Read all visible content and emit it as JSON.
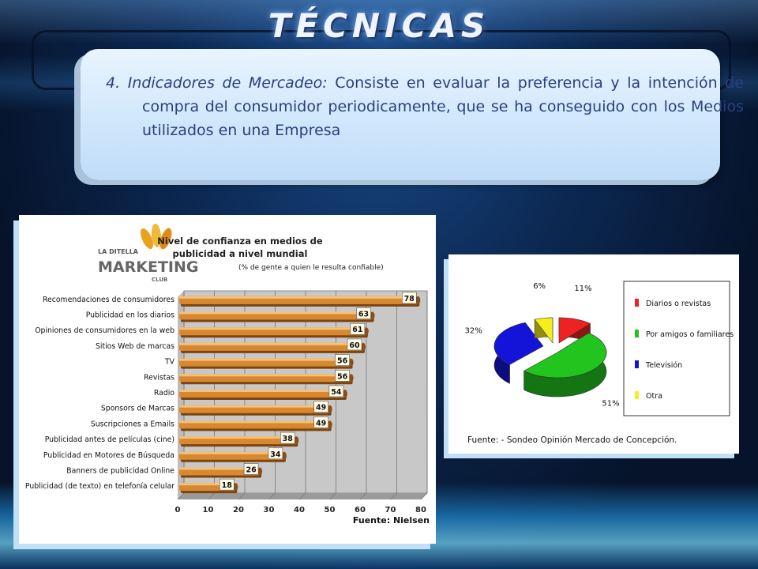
{
  "slide": {
    "title": "TÉCNICAS",
    "lead": "4. Indicadores de Mercadeo:",
    "body": " Consiste en evaluar la preferencia  y la intención de compra del consumidor periodicamente, que se ha conseguido con los Medios utilizados en una Empresa"
  },
  "logo": {
    "top": "LA DITELLA",
    "main": "MARKETING",
    "sub": "CLUB"
  },
  "chart_data": [
    {
      "type": "bar",
      "orientation": "horizontal",
      "title": "Nivel de confianza en medios de publicidad a nivel mundial",
      "subtitle": "(% de gente a quien le resulta confiable)",
      "categories": [
        "Recomendaciones de consumidores",
        "Publicidad en los diarios",
        "Opiniones de consumidores en la web",
        "Sitios Web de marcas",
        "TV",
        "Revistas",
        "Radio",
        "Sponsors de Marcas",
        "Suscripciones a Emails",
        "Publicidad antes de películas (cine)",
        "Publicidad en Motores de Búsqueda",
        "Banners de publicidad Online",
        "Publicidad (de texto) en telefonía celular"
      ],
      "values": [
        78,
        63,
        61,
        60,
        56,
        56,
        54,
        49,
        49,
        38,
        34,
        26,
        18
      ],
      "xlim": [
        0,
        80
      ],
      "xticks": [
        0,
        10,
        20,
        30,
        40,
        50,
        60,
        70,
        80
      ],
      "source": "Fuente: Nielsen",
      "grid": true,
      "colors": {
        "bar": "#d8892f",
        "bar_top": "#f5c07a",
        "bar_shadow": "#7a4513",
        "panel": "#c8c8c8"
      }
    },
    {
      "type": "pie",
      "three_d": true,
      "slices": [
        {
          "label": "Diarios o revistas",
          "value": 11,
          "text": "11%",
          "color": "#ee2222"
        },
        {
          "label": "Por amigos o familiares",
          "value": 51,
          "text": "51%",
          "color": "#22c41e"
        },
        {
          "label": "Televisión",
          "value": 32,
          "text": "32%",
          "color": "#1414d8"
        },
        {
          "label": "Otra",
          "value": 6,
          "text": "6%",
          "color": "#f4ee1c"
        }
      ],
      "legend_position": "right",
      "source": "Fuente: - Sondeo Opinión Mercado de Concepción."
    }
  ]
}
